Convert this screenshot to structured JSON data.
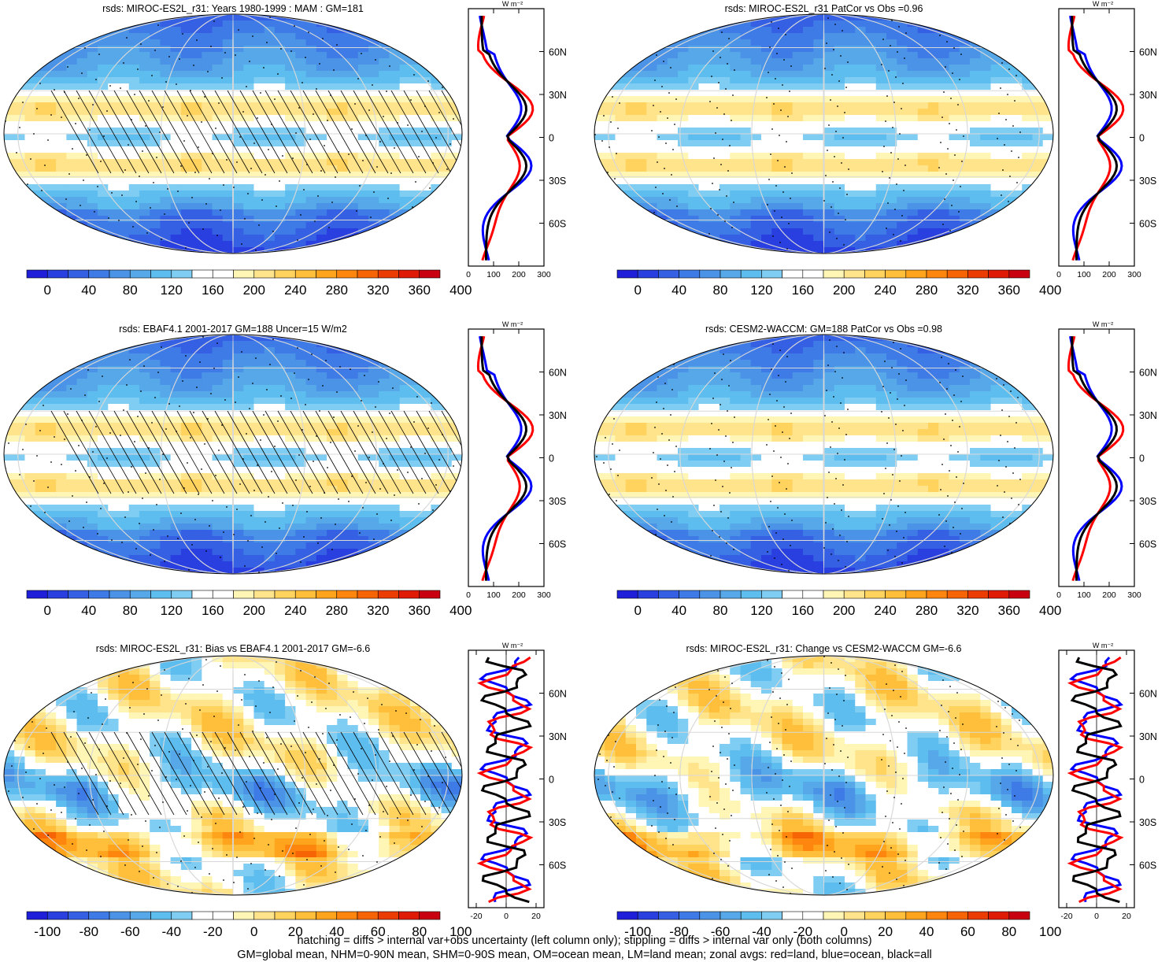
{
  "colors": {
    "map_scale": [
      "#1f1fd9",
      "#2a3fe0",
      "#3560e4",
      "#3f7be6",
      "#4a93e6",
      "#56a8e8",
      "#5cbdee",
      "#7fcdf2",
      "#ffffff",
      "#ffffff",
      "#fff5b4",
      "#ffe48c",
      "#ffd35e",
      "#ffbf3a",
      "#ffa41c",
      "#ff860e",
      "#f76405",
      "#eb3c03",
      "#df1b08",
      "#c90010"
    ],
    "land_line": "#ff0000",
    "ocean_line": "#0000ff",
    "all_line": "#000000"
  },
  "panels": [
    {
      "id": "p1",
      "title": "rsds: MIROC-ES2L_r31: Years 1980-1999 : MAM : GM=181",
      "hatching": true,
      "colorbar_labels": [
        "0",
        "40",
        "80",
        "120",
        "160",
        "200",
        "240",
        "280",
        "320",
        "360",
        "400"
      ],
      "zonal": {
        "units": "W m⁻²",
        "x_ticks": [
          "0",
          "100",
          "200",
          "300"
        ],
        "y_ticks": [
          "60N",
          "30N",
          "0",
          "30S",
          "60S"
        ]
      }
    },
    {
      "id": "p2",
      "title": "rsds: MIROC-ES2L_r31 PatCor vs Obs =0.96",
      "hatching": false,
      "colorbar_labels": [
        "0",
        "40",
        "80",
        "120",
        "160",
        "200",
        "240",
        "280",
        "320",
        "360",
        "400"
      ],
      "zonal": {
        "units": "W m⁻²",
        "x_ticks": [
          "0",
          "100",
          "200",
          "300"
        ],
        "y_ticks": [
          "60N",
          "30N",
          "0",
          "30S",
          "60S"
        ]
      }
    },
    {
      "id": "p3",
      "title": "rsds: EBAF4.1 2001-2017 GM=188 Uncer=15 W/m2",
      "hatching": true,
      "colorbar_labels": [
        "0",
        "40",
        "80",
        "120",
        "160",
        "200",
        "240",
        "280",
        "320",
        "360",
        "400"
      ],
      "zonal": {
        "units": "W m⁻²",
        "x_ticks": [
          "0",
          "100",
          "200",
          "300"
        ],
        "y_ticks": [
          "60N",
          "30N",
          "0",
          "30S",
          "60S"
        ]
      }
    },
    {
      "id": "p4",
      "title": "rsds: CESM2-WACCM: GM=188 PatCor vs Obs =0.98",
      "hatching": false,
      "colorbar_labels": [
        "0",
        "40",
        "80",
        "120",
        "160",
        "200",
        "240",
        "280",
        "320",
        "360",
        "400"
      ],
      "zonal": {
        "units": "W m⁻²",
        "x_ticks": [
          "0",
          "100",
          "200",
          "300"
        ],
        "y_ticks": [
          "60N",
          "30N",
          "0",
          "30S",
          "60S"
        ]
      }
    },
    {
      "id": "p5",
      "title": "rsds: MIROC-ES2L_r31: Bias vs EBAF4.1 2001-2017 GM=-6.6",
      "hatching": true,
      "colorbar_labels": [
        "-100",
        "-80",
        "-60",
        "-40",
        "-20",
        "0",
        "20",
        "40",
        "60",
        "80",
        "100"
      ],
      "zonal": {
        "units": "W m⁻²",
        "x_ticks": [
          "-20",
          "0",
          "20"
        ],
        "y_ticks": [
          "60N",
          "30N",
          "0",
          "30S",
          "60S"
        ]
      }
    },
    {
      "id": "p6",
      "title": "rsds: MIROC-ES2L_r31: Change vs CESM2-WACCM GM=-6.6",
      "hatching": false,
      "colorbar_labels": [
        "-100",
        "-80",
        "-60",
        "-40",
        "-20",
        "0",
        "20",
        "40",
        "60",
        "80",
        "100"
      ],
      "zonal": {
        "units": "W m⁻²",
        "x_ticks": [
          "-20",
          "0",
          "20"
        ],
        "y_ticks": [
          "60N",
          "30N",
          "0",
          "30S",
          "60S"
        ]
      }
    }
  ],
  "footnote": {
    "line1": "hatching = diffs > internal var+obs uncertainty (left column only); stippling = diffs > internal var only (both columns)",
    "line2": "GM=global mean, NHM=0-90N mean, SHM=0-90S mean, OM=ocean mean, LM=land mean; zonal avgs: red=land, blue=ocean, black=all"
  }
}
